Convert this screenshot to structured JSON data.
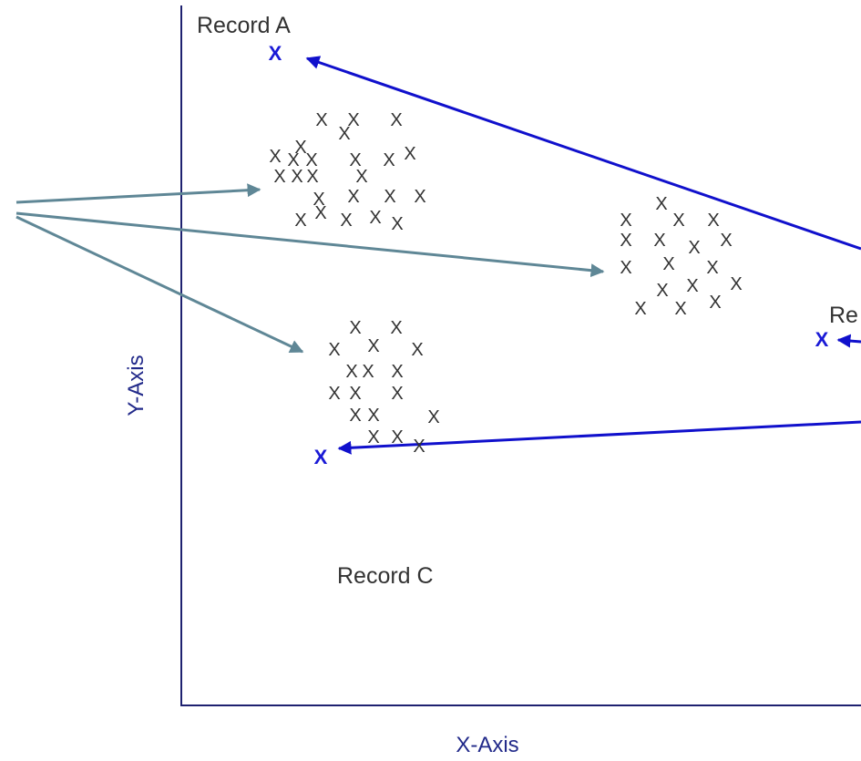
{
  "labels": {
    "record_a": "Record A",
    "record_b": "Re",
    "record_c": "Record C",
    "x_axis": "X-Axis",
    "y_axis": "Y-Axis"
  },
  "marker": "X",
  "colors": {
    "axis": "#1e2170",
    "blue_arrow": "#1010cc",
    "gray_arrow": "#5f8796",
    "outlier_marker": "#1a1ad6",
    "cluster_marker": "#333333"
  }
}
